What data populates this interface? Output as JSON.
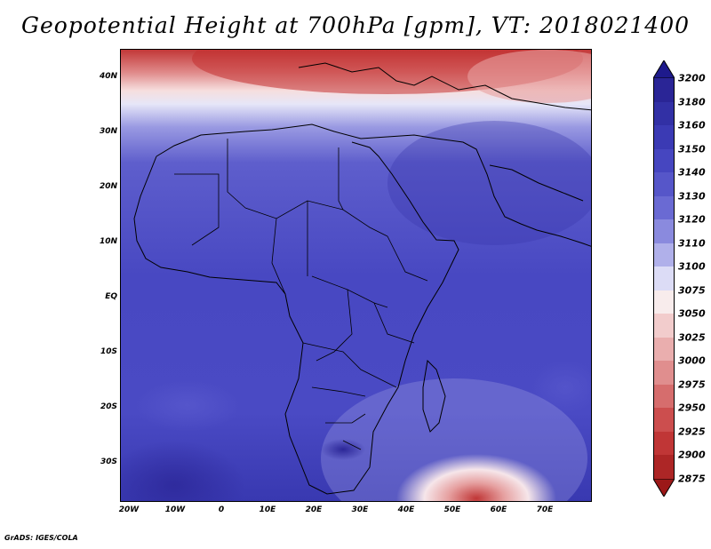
{
  "title": "Geopotential Height at 700hPa [gpm], VT: 2018021400",
  "footer": "GrADS: IGES/COLA",
  "map": {
    "region": "Africa",
    "lat_labels": [
      "40N",
      "30N",
      "20N",
      "10N",
      "EQ",
      "10S",
      "20S",
      "30S"
    ],
    "lon_labels": [
      "20W",
      "10W",
      "0",
      "10E",
      "20E",
      "30E",
      "40E",
      "50E",
      "60E",
      "70E"
    ]
  },
  "colorbar": {
    "levels": [
      "3200",
      "3180",
      "3160",
      "3150",
      "3140",
      "3130",
      "3120",
      "3110",
      "3100",
      "3075",
      "3050",
      "3025",
      "3000",
      "2975",
      "2950",
      "2925",
      "2900",
      "2875"
    ],
    "colors": {
      "top_arrow": "#1e1a8c",
      "bands": [
        "#2a2596",
        "#3230a5",
        "#3b3ab4",
        "#4646c0",
        "#5656c9",
        "#6a6ad3",
        "#8a8ade",
        "#b0b0ea",
        "#dcdcf6",
        "#f8ecec",
        "#f2cccc",
        "#eaaeae",
        "#e08e8e",
        "#d66d6d",
        "#cc4e4e",
        "#c03636",
        "#ad2626"
      ],
      "bottom_arrow": "#9c1818"
    }
  }
}
